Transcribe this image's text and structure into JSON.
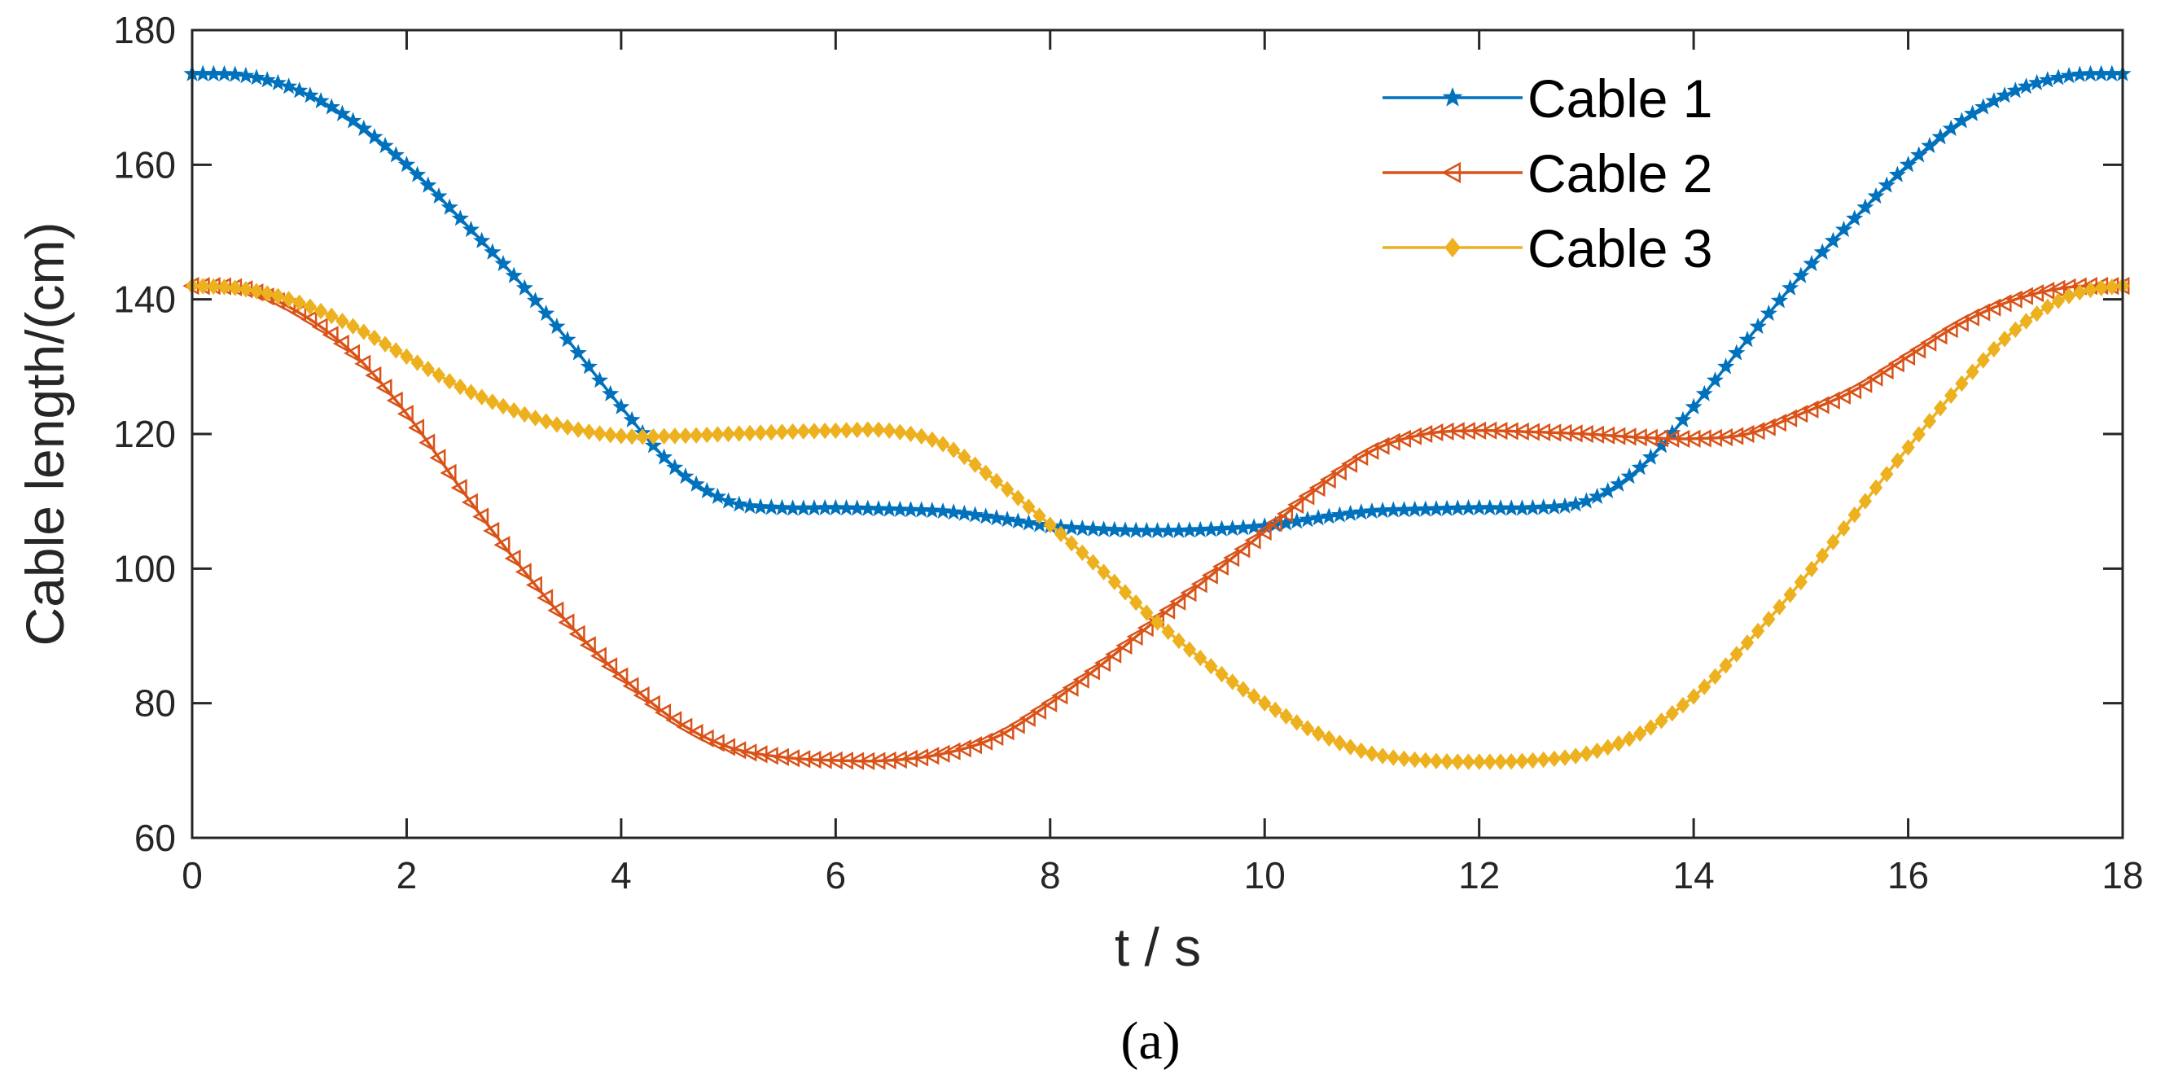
{
  "chart_data": {
    "type": "line",
    "title": "",
    "xlabel": "t / s",
    "ylabel": "Cable length/(cm)",
    "caption": "(a)",
    "xlim": [
      0,
      18
    ],
    "ylim": [
      60,
      180
    ],
    "xticks": [
      0,
      2,
      4,
      6,
      8,
      10,
      12,
      14,
      16,
      18
    ],
    "yticks": [
      60,
      80,
      100,
      120,
      140,
      160,
      180
    ],
    "grid": false,
    "legend_position": "top-right",
    "x": [
      0,
      0.5,
      1,
      1.5,
      2,
      2.5,
      3,
      3.5,
      4,
      4.5,
      5,
      5.5,
      6,
      6.5,
      7,
      7.5,
      8,
      8.5,
      9,
      9.5,
      10,
      10.5,
      11,
      11.5,
      12,
      12.5,
      13,
      13.5,
      14,
      14.5,
      15,
      15.5,
      16,
      16.5,
      17,
      17.5,
      18
    ],
    "series": [
      {
        "name": "Cable 1",
        "color": "#0072BD",
        "marker": "star",
        "values": [
          173.5,
          173.2,
          171,
          166.5,
          160,
          152,
          143.5,
          134,
          124,
          115,
          110,
          109,
          109,
          108.8,
          108.5,
          107.5,
          106.3,
          105.8,
          105.6,
          105.8,
          106.3,
          107.5,
          108.5,
          108.8,
          109,
          109,
          110,
          115,
          124,
          134,
          143.5,
          152,
          160,
          166.5,
          171,
          173.2,
          173.5
        ]
      },
      {
        "name": "Cable 2",
        "color": "#D95319",
        "marker": "triangle-left",
        "values": [
          142,
          141.5,
          138,
          132,
          123,
          112,
          101.5,
          92,
          84,
          77.5,
          73.5,
          72,
          71.5,
          71.5,
          72.5,
          75,
          80,
          86,
          92.5,
          99,
          105.5,
          112,
          117.5,
          120,
          120.5,
          120.3,
          120,
          119.5,
          119.3,
          120,
          123,
          126.5,
          131.5,
          136.5,
          140,
          141.8,
          142
        ]
      },
      {
        "name": "Cable 3",
        "color": "#EDB120",
        "marker": "diamond",
        "values": [
          142,
          141.5,
          139.5,
          136,
          131.5,
          127,
          123.5,
          121,
          119.7,
          119.7,
          120,
          120.3,
          120.5,
          120.5,
          118.5,
          113,
          106.5,
          99.5,
          92,
          85.5,
          80,
          75.5,
          72.5,
          71.5,
          71.3,
          71.5,
          72.5,
          75.5,
          81,
          89,
          98,
          108,
          118,
          127.5,
          135.5,
          140.5,
          142
        ]
      }
    ]
  }
}
